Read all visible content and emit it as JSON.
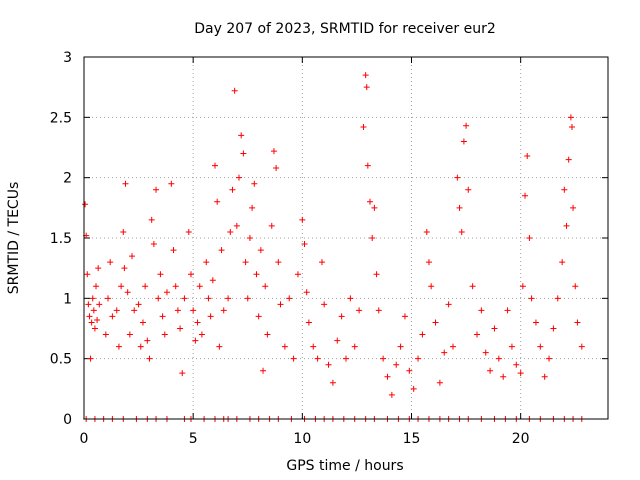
{
  "chart_data": {
    "type": "scatter",
    "title": "Day 207 of 2023, SRMTID for receiver eur2",
    "xlabel": "GPS time / hours",
    "ylabel": "SRMTID / TECUs",
    "xlim": [
      0,
      24
    ],
    "ylim": [
      0,
      3
    ],
    "xticks": [
      0,
      5,
      10,
      15,
      20
    ],
    "xtick_labels": [
      "0",
      "5",
      "10",
      "15",
      "20"
    ],
    "yticks": [
      0,
      0.5,
      1,
      1.5,
      2,
      2.5,
      3
    ],
    "ytick_labels": [
      "0",
      "0.5",
      "1",
      "1.5",
      "2",
      "2.5",
      "3"
    ],
    "grid": true,
    "marker": "+",
    "marker_color": "#ff0000",
    "series": [
      {
        "name": "SRMTID",
        "points": [
          [
            0.05,
            1.78
          ],
          [
            0.1,
            1.52
          ],
          [
            0.15,
            1.2
          ],
          [
            0.2,
            0.95
          ],
          [
            0.25,
            0.85
          ],
          [
            0.3,
            0.5
          ],
          [
            0.35,
            0.8
          ],
          [
            0.4,
            1.0
          ],
          [
            0.45,
            0.9
          ],
          [
            0.5,
            0.75
          ],
          [
            0.55,
            1.1
          ],
          [
            0.6,
            0.82
          ],
          [
            0.65,
            1.25
          ],
          [
            0.7,
            0.95
          ],
          [
            1.0,
            0.7
          ],
          [
            1.1,
            1.0
          ],
          [
            1.2,
            1.3
          ],
          [
            1.3,
            0.85
          ],
          [
            1.5,
            0.9
          ],
          [
            1.6,
            0.6
          ],
          [
            1.7,
            1.1
          ],
          [
            1.8,
            1.55
          ],
          [
            1.85,
            1.25
          ],
          [
            1.9,
            1.95
          ],
          [
            2.0,
            1.05
          ],
          [
            2.1,
            0.7
          ],
          [
            2.2,
            1.35
          ],
          [
            2.3,
            0.9
          ],
          [
            2.5,
            0.95
          ],
          [
            2.6,
            0.6
          ],
          [
            2.7,
            0.8
          ],
          [
            2.8,
            1.1
          ],
          [
            2.9,
            0.65
          ],
          [
            3.0,
            0.5
          ],
          [
            3.1,
            1.65
          ],
          [
            3.2,
            1.45
          ],
          [
            3.3,
            1.9
          ],
          [
            3.4,
            1.0
          ],
          [
            3.5,
            1.2
          ],
          [
            3.6,
            0.85
          ],
          [
            3.7,
            0.7
          ],
          [
            3.8,
            1.05
          ],
          [
            4.0,
            1.95
          ],
          [
            4.1,
            1.4
          ],
          [
            4.2,
            1.1
          ],
          [
            4.3,
            0.9
          ],
          [
            4.4,
            0.75
          ],
          [
            4.5,
            0.38
          ],
          [
            4.6,
            1.0
          ],
          [
            4.8,
            1.55
          ],
          [
            4.9,
            1.2
          ],
          [
            5.0,
            0.9
          ],
          [
            5.1,
            0.65
          ],
          [
            5.2,
            0.8
          ],
          [
            5.3,
            1.1
          ],
          [
            5.4,
            0.7
          ],
          [
            5.6,
            1.3
          ],
          [
            5.7,
            1.0
          ],
          [
            5.8,
            0.85
          ],
          [
            5.9,
            1.15
          ],
          [
            6.0,
            2.1
          ],
          [
            6.1,
            1.8
          ],
          [
            6.2,
            0.6
          ],
          [
            6.3,
            1.4
          ],
          [
            6.4,
            0.9
          ],
          [
            6.6,
            1.0
          ],
          [
            6.7,
            1.55
          ],
          [
            6.8,
            1.9
          ],
          [
            6.9,
            2.72
          ],
          [
            7.0,
            1.6
          ],
          [
            7.1,
            2.0
          ],
          [
            7.2,
            2.35
          ],
          [
            7.3,
            2.2
          ],
          [
            7.4,
            1.3
          ],
          [
            7.5,
            1.0
          ],
          [
            7.6,
            1.5
          ],
          [
            7.7,
            1.75
          ],
          [
            7.8,
            1.95
          ],
          [
            7.9,
            1.2
          ],
          [
            8.0,
            0.85
          ],
          [
            8.1,
            1.4
          ],
          [
            8.2,
            0.4
          ],
          [
            8.3,
            1.1
          ],
          [
            8.4,
            0.7
          ],
          [
            8.6,
            1.6
          ],
          [
            8.7,
            2.22
          ],
          [
            8.8,
            2.08
          ],
          [
            8.9,
            1.3
          ],
          [
            9.0,
            0.95
          ],
          [
            9.2,
            0.6
          ],
          [
            9.4,
            1.0
          ],
          [
            9.6,
            0.5
          ],
          [
            9.8,
            1.2
          ],
          [
            10.0,
            1.65
          ],
          [
            10.1,
            1.45
          ],
          [
            10.2,
            1.05
          ],
          [
            10.3,
            0.8
          ],
          [
            10.5,
            0.6
          ],
          [
            10.7,
            0.5
          ],
          [
            10.9,
            1.3
          ],
          [
            11.0,
            0.95
          ],
          [
            11.2,
            0.45
          ],
          [
            11.4,
            0.3
          ],
          [
            11.6,
            0.65
          ],
          [
            11.8,
            0.85
          ],
          [
            12.0,
            0.5
          ],
          [
            12.2,
            1.0
          ],
          [
            12.4,
            0.6
          ],
          [
            12.6,
            0.9
          ],
          [
            12.8,
            2.42
          ],
          [
            12.9,
            2.85
          ],
          [
            12.95,
            2.75
          ],
          [
            13.0,
            2.1
          ],
          [
            13.1,
            1.8
          ],
          [
            13.2,
            1.5
          ],
          [
            13.3,
            1.75
          ],
          [
            13.4,
            1.2
          ],
          [
            13.5,
            0.9
          ],
          [
            13.7,
            0.5
          ],
          [
            13.9,
            0.35
          ],
          [
            14.1,
            0.2
          ],
          [
            14.3,
            0.45
          ],
          [
            14.5,
            0.6
          ],
          [
            14.7,
            0.85
          ],
          [
            14.9,
            0.4
          ],
          [
            15.1,
            0.25
          ],
          [
            15.3,
            0.5
          ],
          [
            15.5,
            0.7
          ],
          [
            15.7,
            1.55
          ],
          [
            15.8,
            1.3
          ],
          [
            15.9,
            1.1
          ],
          [
            16.1,
            0.8
          ],
          [
            16.3,
            0.3
          ],
          [
            16.5,
            0.55
          ],
          [
            16.7,
            0.95
          ],
          [
            16.9,
            0.6
          ],
          [
            17.1,
            2.0
          ],
          [
            17.2,
            1.75
          ],
          [
            17.3,
            1.55
          ],
          [
            17.4,
            2.3
          ],
          [
            17.5,
            2.43
          ],
          [
            17.6,
            1.9
          ],
          [
            17.8,
            1.1
          ],
          [
            18.0,
            0.7
          ],
          [
            18.2,
            0.9
          ],
          [
            18.4,
            0.55
          ],
          [
            18.6,
            0.4
          ],
          [
            18.8,
            0.75
          ],
          [
            19.0,
            0.5
          ],
          [
            19.2,
            0.35
          ],
          [
            19.4,
            0.9
          ],
          [
            19.6,
            0.6
          ],
          [
            19.8,
            0.45
          ],
          [
            20.0,
            0.38
          ],
          [
            20.1,
            1.1
          ],
          [
            20.2,
            1.85
          ],
          [
            20.3,
            2.18
          ],
          [
            20.4,
            1.5
          ],
          [
            20.5,
            1.0
          ],
          [
            20.7,
            0.8
          ],
          [
            20.9,
            0.6
          ],
          [
            21.1,
            0.35
          ],
          [
            21.3,
            0.5
          ],
          [
            21.5,
            0.75
          ],
          [
            21.7,
            1.0
          ],
          [
            21.9,
            1.3
          ],
          [
            22.0,
            1.9
          ],
          [
            22.1,
            1.6
          ],
          [
            22.2,
            2.15
          ],
          [
            22.3,
            2.5
          ],
          [
            22.35,
            2.42
          ],
          [
            22.4,
            1.75
          ],
          [
            22.5,
            1.1
          ],
          [
            22.6,
            0.8
          ],
          [
            22.8,
            0.6
          ]
        ]
      },
      {
        "name": "zero-level",
        "points": [
          [
            0.1,
            0
          ],
          [
            0.5,
            0
          ],
          [
            0.9,
            0
          ],
          [
            1.3,
            0
          ],
          [
            1.8,
            0
          ],
          [
            2.4,
            0
          ],
          [
            2.9,
            0
          ],
          [
            3.3,
            0
          ],
          [
            3.8,
            0
          ],
          [
            4.6,
            0
          ],
          [
            4.9,
            0
          ],
          [
            5.5,
            0
          ],
          [
            6.0,
            0
          ],
          [
            6.4,
            0
          ],
          [
            6.6,
            0
          ],
          [
            7.0,
            0
          ],
          [
            7.6,
            0
          ],
          [
            8.0,
            0
          ],
          [
            8.5,
            0
          ],
          [
            8.9,
            0
          ],
          [
            9.5,
            0
          ],
          [
            10.1,
            0
          ],
          [
            10.6,
            0
          ],
          [
            11.0,
            0
          ],
          [
            11.4,
            0
          ],
          [
            11.9,
            0
          ],
          [
            12.4,
            0
          ],
          [
            12.9,
            0
          ],
          [
            13.3,
            0
          ],
          [
            13.9,
            0
          ],
          [
            14.4,
            0
          ],
          [
            14.9,
            0
          ],
          [
            15.3,
            0
          ],
          [
            15.8,
            0
          ],
          [
            16.3,
            0
          ],
          [
            16.7,
            0
          ],
          [
            17.2,
            0
          ],
          [
            17.6,
            0
          ],
          [
            18.2,
            0
          ],
          [
            18.8,
            0
          ],
          [
            19.3,
            0
          ],
          [
            19.8,
            0
          ],
          [
            20.4,
            0
          ],
          [
            20.9,
            0
          ],
          [
            21.5,
            0
          ],
          [
            22.0,
            0
          ],
          [
            22.4,
            0
          ],
          [
            22.8,
            0
          ]
        ]
      }
    ]
  }
}
